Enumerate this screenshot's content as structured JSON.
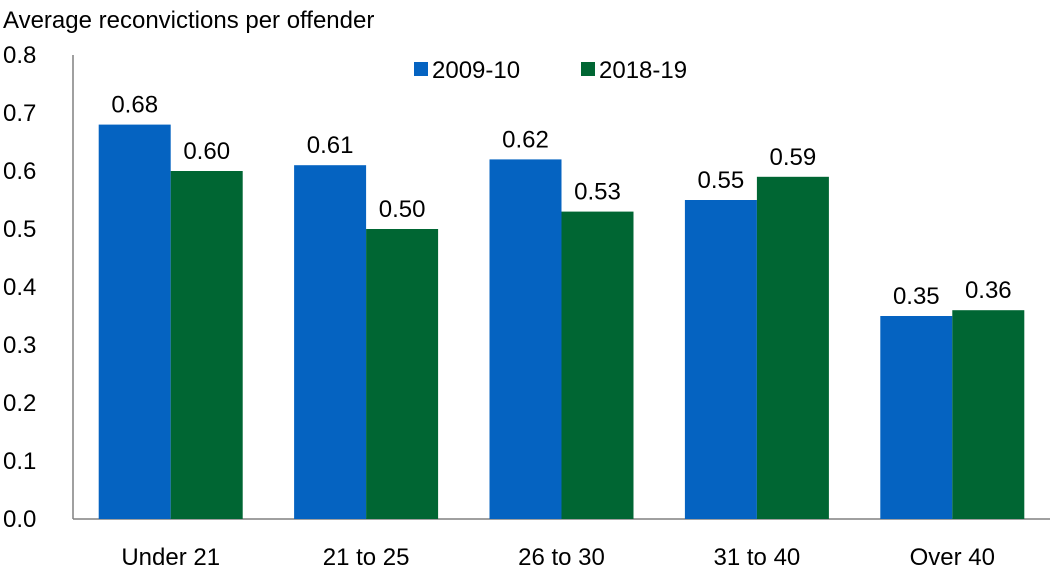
{
  "chart_data": {
    "type": "bar",
    "ylabel": "Average reconvictions per offender",
    "categories": [
      "Under 21",
      "21 to 25",
      "26 to 30",
      "31 to 40",
      "Over 40"
    ],
    "series": [
      {
        "name": "2009-10",
        "color": "#0563C1",
        "values": [
          0.68,
          0.61,
          0.62,
          0.55,
          0.35
        ],
        "labels": [
          "0.68",
          "0.61",
          "0.62",
          "0.55",
          "0.35"
        ]
      },
      {
        "name": "2018-19",
        "color": "#006633",
        "values": [
          0.6,
          0.5,
          0.53,
          0.59,
          0.36
        ],
        "labels": [
          "0.60",
          "0.50",
          "0.53",
          "0.59",
          "0.36"
        ]
      }
    ],
    "ylim": [
      0,
      0.8
    ],
    "yticks": [
      "0.0",
      "0.1",
      "0.2",
      "0.3",
      "0.4",
      "0.5",
      "0.6",
      "0.7",
      "0.8"
    ],
    "legend_position": "top-right",
    "grid": false
  }
}
